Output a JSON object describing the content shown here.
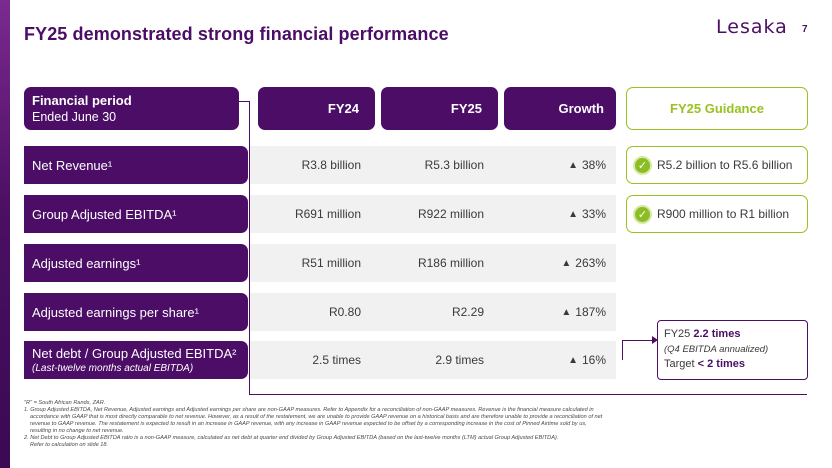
{
  "title": "FY25 demonstrated strong financial performance",
  "logo": "Lesaka",
  "page_number": "7",
  "colors": {
    "primary": "#4b0d66",
    "accent_green": "#98c21f",
    "row_bg": "#f1f1f1"
  },
  "header": {
    "period_line1": "Financial period",
    "period_line2": "Ended June 30",
    "fy24": "FY24",
    "fy25": "FY25",
    "growth": "Growth",
    "guidance": "FY25 Guidance"
  },
  "rows": [
    {
      "label": "Net Revenue¹",
      "fy24": "R3.8 billion",
      "fy25": "R5.3 billion",
      "growth": "38%",
      "guidance": "R5.2 billion to R5.6 billion",
      "guidance_icon": "check-icon"
    },
    {
      "label": "Group Adjusted EBITDA¹",
      "fy24": "R691 million",
      "fy25": "R922 million",
      "growth": "33%",
      "guidance": "R900 million to R1 billion",
      "guidance_icon": "check-icon"
    },
    {
      "label": "Adjusted earnings¹",
      "fy24": "R51 million",
      "fy25": "R186 million",
      "growth": "263%"
    },
    {
      "label": "Adjusted earnings per share¹",
      "fy24": "R0.80",
      "fy25": "R2.29",
      "growth": "187%"
    },
    {
      "label": "Net debt / Group Adjusted EBITDA²",
      "sublabel": "(Last-twelve months actual EBITDA)",
      "fy24": "2.5 times",
      "fy25": "2.9 times",
      "growth": "16%"
    }
  ],
  "up_arrow": "▲",
  "check_glyph": "✓",
  "debt_guidance": {
    "line1_prefix": "FY25 ",
    "line1_value": "2.2 times",
    "line2": "(Q4 EBITDA annualized)",
    "line3_prefix": "Target ",
    "line3_value": "< 2 times"
  },
  "footnotes": {
    "f0": "\"R\" = South African Rands, ZAR.",
    "f1a": "1. Group Adjusted EBITDA, Net Revenue, Adjusted earnings and Adjusted earnings per share are non-GAAP measures. Refer to Appendix for a reconciliation of non-GAAP measures.  Revenue is the financial measure calculated in",
    "f1b": "accordance with GAAP that is most directly comparable to net revenue. However, as a result of the restatement, we are unable to provide GAAP revenue on a historical basis and are therefore unable to provide a reconciliation of net",
    "f1c": "revenue to GAAP revenue. The restatement is expected to result in an increase in GAAP revenue, with any increase in GAAP revenue expected to be offset by a corresponding increase in the cost of Pinned Airtime sold by us,",
    "f1d": "resulting in no change to net revenue.",
    "f2a": "2. Net Debt to Group Adjusted EBITDA ratio is a non-GAAP measure, calculated as net debt at quarter end divided by Group Adjusted EBITDA (based on the last-twelve months (LTM) actual Group Adjusted EBITDA).",
    "f2b": "Refer to calculation on slide 18."
  }
}
